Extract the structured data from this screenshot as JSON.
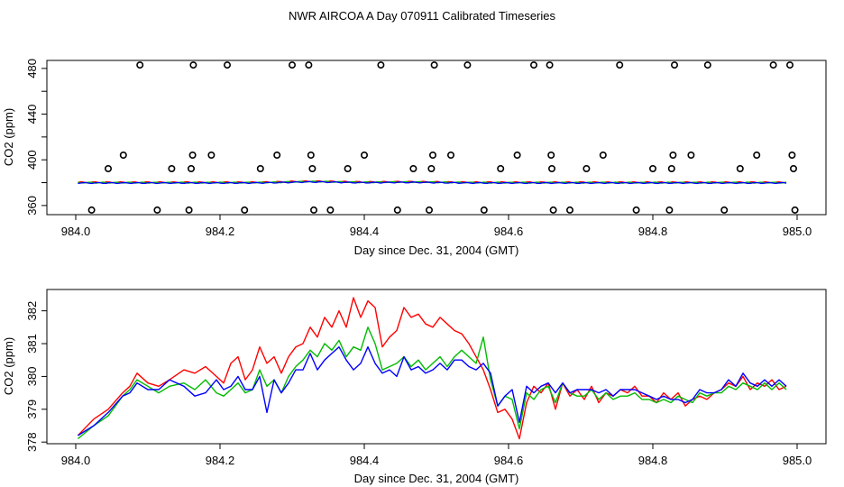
{
  "title": "NWR AIRCOA A  Day 070911  Calibrated Timeseries",
  "chart_data": [
    {
      "type": "line",
      "xlabel": "Day since Dec. 31, 2004 (GMT)",
      "ylabel": "CO2 (ppm)",
      "xlim": [
        983.96,
        985.04
      ],
      "ylim": [
        352,
        487
      ],
      "xticks": [
        "984.0",
        "984.2",
        "984.4",
        "984.6",
        "984.8",
        "985.0"
      ],
      "yticks": [
        "360",
        "400",
        "440",
        "480"
      ],
      "series_colors": [
        "#ff0000",
        "#00bb00",
        "#0000ff"
      ],
      "series_model": {
        "x_start": 984.003,
        "x_end": 984.985,
        "n": 200,
        "base": 380.0,
        "bumps": [
          {
            "center": 984.33,
            "width": 0.05,
            "amp": 0.9
          },
          {
            "center": 984.46,
            "width": 0.06,
            "amp": 0.5
          }
        ],
        "offsets": [
          0.3,
          0.0,
          -0.3
        ],
        "jitter": 0.5
      },
      "marker_series": {
        "name": "reference-points",
        "marker": "open-circle",
        "x": [
          984.022,
          984.045,
          984.066,
          984.089,
          984.113,
          984.133,
          984.157,
          984.16,
          984.162,
          984.163,
          984.188,
          984.21,
          984.234,
          984.256,
          984.279,
          984.3,
          984.323,
          984.326,
          984.328,
          984.33,
          984.353,
          984.377,
          984.4,
          984.423,
          984.446,
          984.468,
          984.49,
          984.493,
          984.495,
          984.497,
          984.52,
          984.543,
          984.566,
          984.589,
          984.612,
          984.635,
          984.657,
          984.659,
          984.66,
          984.662,
          984.685,
          984.708,
          984.731,
          984.754,
          984.777,
          984.8,
          984.823,
          984.826,
          984.828,
          984.83,
          984.853,
          984.876,
          984.899,
          984.921,
          984.944,
          984.967,
          984.99,
          984.993,
          984.995,
          984.997
        ],
        "y": [
          356.0,
          392.3,
          404.1,
          483.0,
          356.0,
          392.3,
          356.0,
          392.3,
          404.1,
          483.0,
          404.1,
          483.0,
          356.0,
          392.3,
          404.1,
          483.0,
          483.0,
          404.1,
          392.3,
          356.0,
          356.0,
          392.3,
          404.1,
          483.0,
          356.0,
          392.3,
          356.0,
          392.3,
          404.1,
          483.0,
          404.1,
          483.0,
          356.0,
          392.3,
          404.1,
          483.0,
          483.0,
          404.1,
          392.3,
          356.0,
          356.0,
          392.3,
          404.1,
          483.0,
          356.0,
          392.3,
          356.0,
          392.3,
          404.1,
          483.0,
          404.1,
          483.0,
          356.0,
          392.3,
          404.1,
          483.0,
          483.0,
          404.1,
          392.3,
          356.0
        ]
      }
    },
    {
      "type": "line",
      "xlabel": "Day since Dec. 31, 2004 (GMT)",
      "ylabel": "CO2 (ppm)",
      "xlim": [
        983.96,
        985.04
      ],
      "ylim": [
        377.95,
        382.65
      ],
      "xticks": [
        "984.0",
        "984.2",
        "984.4",
        "984.6",
        "984.8",
        "985.0"
      ],
      "yticks": [
        "378",
        "379",
        "380",
        "381",
        "382"
      ],
      "series": [
        {
          "name": "red",
          "color": "#ff0000",
          "x": [
            984.003,
            984.025,
            984.045,
            984.065,
            984.075,
            984.085,
            984.1,
            984.115,
            984.13,
            984.15,
            984.165,
            984.18,
            984.195,
            984.205,
            984.215,
            984.225,
            984.235,
            984.245,
            984.255,
            984.265,
            984.275,
            984.285,
            984.295,
            984.305,
            984.315,
            984.325,
            984.335,
            984.345,
            984.355,
            984.365,
            984.375,
            984.385,
            984.395,
            984.405,
            984.415,
            984.425,
            984.435,
            984.445,
            984.455,
            984.465,
            984.475,
            984.485,
            984.495,
            984.505,
            984.515,
            984.525,
            984.535,
            984.545,
            984.555,
            984.565,
            984.575,
            984.585,
            984.595,
            984.605,
            984.615,
            984.625,
            984.635,
            984.645,
            984.655,
            984.665,
            984.675,
            984.685,
            984.695,
            984.705,
            984.715,
            984.725,
            984.735,
            984.745,
            984.755,
            984.765,
            984.775,
            984.785,
            984.795,
            984.805,
            984.815,
            984.825,
            984.835,
            984.845,
            984.855,
            984.865,
            984.875,
            984.885,
            984.895,
            984.905,
            984.915,
            984.925,
            984.935,
            984.945,
            984.955,
            984.965,
            984.975,
            984.985
          ],
          "values": [
            378.2,
            378.7,
            379.0,
            379.5,
            379.7,
            380.1,
            379.8,
            379.7,
            379.9,
            380.2,
            380.1,
            380.3,
            380.0,
            379.8,
            380.4,
            380.6,
            379.9,
            380.2,
            380.9,
            380.4,
            380.6,
            380.1,
            380.6,
            380.9,
            381.0,
            381.5,
            381.2,
            381.8,
            381.5,
            382.0,
            381.5,
            382.4,
            381.8,
            382.3,
            382.1,
            380.9,
            381.2,
            381.4,
            382.1,
            381.8,
            381.9,
            381.6,
            381.5,
            381.8,
            381.6,
            381.4,
            381.3,
            381.0,
            380.6,
            380.2,
            379.6,
            378.9,
            379.0,
            378.7,
            378.1,
            379.2,
            379.7,
            379.5,
            379.8,
            379.0,
            379.8,
            379.4,
            379.6,
            379.3,
            379.7,
            379.2,
            379.5,
            379.4,
            379.6,
            379.5,
            379.7,
            379.4,
            379.4,
            379.2,
            379.5,
            379.3,
            379.5,
            379.1,
            379.3,
            379.4,
            379.3,
            379.5,
            379.6,
            379.8,
            379.7,
            380.0,
            379.6,
            379.8,
            379.7,
            379.9,
            379.6,
            379.7
          ]
        },
        {
          "name": "green",
          "color": "#00bb00",
          "x": [
            984.003,
            984.025,
            984.045,
            984.065,
            984.075,
            984.085,
            984.1,
            984.115,
            984.13,
            984.15,
            984.165,
            984.18,
            984.195,
            984.205,
            984.215,
            984.225,
            984.235,
            984.245,
            984.255,
            984.265,
            984.275,
            984.285,
            984.295,
            984.305,
            984.315,
            984.325,
            984.335,
            984.345,
            984.355,
            984.365,
            984.375,
            984.385,
            984.395,
            984.405,
            984.415,
            984.425,
            984.435,
            984.445,
            984.455,
            984.465,
            984.475,
            984.485,
            984.495,
            984.505,
            984.515,
            984.525,
            984.535,
            984.545,
            984.555,
            984.565,
            984.575,
            984.585,
            984.595,
            984.605,
            984.615,
            984.625,
            984.635,
            984.645,
            984.655,
            984.665,
            984.675,
            984.685,
            984.695,
            984.705,
            984.715,
            984.725,
            984.735,
            984.745,
            984.755,
            984.765,
            984.775,
            984.785,
            984.795,
            984.805,
            984.815,
            984.825,
            984.835,
            984.845,
            984.855,
            984.865,
            984.875,
            984.885,
            984.895,
            984.905,
            984.915,
            984.925,
            984.935,
            984.945,
            984.955,
            984.965,
            984.975,
            984.985
          ],
          "values": [
            378.1,
            378.5,
            378.8,
            379.4,
            379.6,
            379.9,
            379.7,
            379.5,
            379.7,
            379.8,
            379.6,
            379.9,
            379.5,
            379.4,
            379.6,
            379.8,
            379.5,
            379.6,
            380.2,
            379.7,
            379.9,
            379.5,
            380.0,
            380.3,
            380.5,
            380.8,
            380.6,
            381.0,
            380.8,
            381.1,
            380.6,
            380.9,
            380.8,
            381.5,
            381.0,
            380.2,
            380.3,
            380.4,
            380.6,
            380.3,
            380.5,
            380.2,
            380.4,
            380.6,
            380.3,
            380.6,
            380.8,
            380.6,
            380.4,
            381.2,
            379.9,
            379.1,
            379.4,
            379.3,
            378.4,
            379.5,
            379.3,
            379.6,
            379.7,
            379.2,
            379.8,
            379.5,
            379.4,
            379.4,
            379.6,
            379.3,
            379.5,
            379.3,
            379.4,
            379.4,
            379.5,
            379.3,
            379.3,
            379.2,
            379.3,
            379.2,
            379.4,
            379.3,
            379.2,
            379.5,
            379.4,
            379.5,
            379.5,
            379.7,
            379.6,
            379.8,
            379.7,
            379.6,
            379.8,
            379.6,
            379.8,
            379.6
          ]
        },
        {
          "name": "blue",
          "color": "#0000ff",
          "x": [
            984.003,
            984.025,
            984.045,
            984.065,
            984.075,
            984.085,
            984.1,
            984.115,
            984.13,
            984.15,
            984.165,
            984.18,
            984.195,
            984.205,
            984.215,
            984.225,
            984.235,
            984.245,
            984.255,
            984.265,
            984.275,
            984.285,
            984.295,
            984.305,
            984.315,
            984.325,
            984.335,
            984.345,
            984.355,
            984.365,
            984.375,
            984.385,
            984.395,
            984.405,
            984.415,
            984.425,
            984.435,
            984.445,
            984.455,
            984.465,
            984.475,
            984.485,
            984.495,
            984.505,
            984.515,
            984.525,
            984.535,
            984.545,
            984.555,
            984.565,
            984.575,
            984.585,
            984.595,
            984.605,
            984.615,
            984.625,
            984.635,
            984.645,
            984.655,
            984.665,
            984.675,
            984.685,
            984.695,
            984.705,
            984.715,
            984.725,
            984.735,
            984.745,
            984.755,
            984.765,
            984.775,
            984.785,
            984.795,
            984.805,
            984.815,
            984.825,
            984.835,
            984.845,
            984.855,
            984.865,
            984.875,
            984.885,
            984.895,
            984.905,
            984.915,
            984.925,
            984.935,
            984.945,
            984.955,
            984.965,
            984.975,
            984.985
          ],
          "values": [
            378.2,
            378.5,
            378.9,
            379.4,
            379.5,
            379.8,
            379.6,
            379.6,
            379.9,
            379.7,
            379.4,
            379.5,
            379.9,
            379.6,
            379.7,
            380.0,
            379.6,
            379.6,
            380.0,
            378.9,
            379.9,
            379.5,
            379.8,
            380.2,
            380.2,
            380.7,
            380.2,
            380.5,
            380.7,
            380.9,
            380.5,
            380.2,
            380.4,
            380.9,
            380.4,
            380.1,
            380.2,
            380.0,
            380.6,
            380.2,
            380.3,
            380.1,
            380.2,
            380.4,
            380.2,
            380.5,
            380.5,
            380.3,
            380.2,
            380.4,
            380.1,
            379.1,
            379.4,
            379.6,
            378.6,
            379.7,
            379.5,
            379.7,
            379.8,
            379.5,
            379.8,
            379.5,
            379.6,
            379.6,
            379.6,
            379.5,
            379.6,
            379.4,
            379.6,
            379.6,
            379.6,
            379.5,
            379.4,
            379.3,
            379.4,
            379.3,
            379.3,
            379.2,
            379.3,
            379.6,
            379.5,
            379.5,
            379.6,
            379.9,
            379.7,
            380.1,
            379.8,
            379.7,
            379.9,
            379.7,
            379.9,
            379.7
          ]
        }
      ]
    }
  ]
}
